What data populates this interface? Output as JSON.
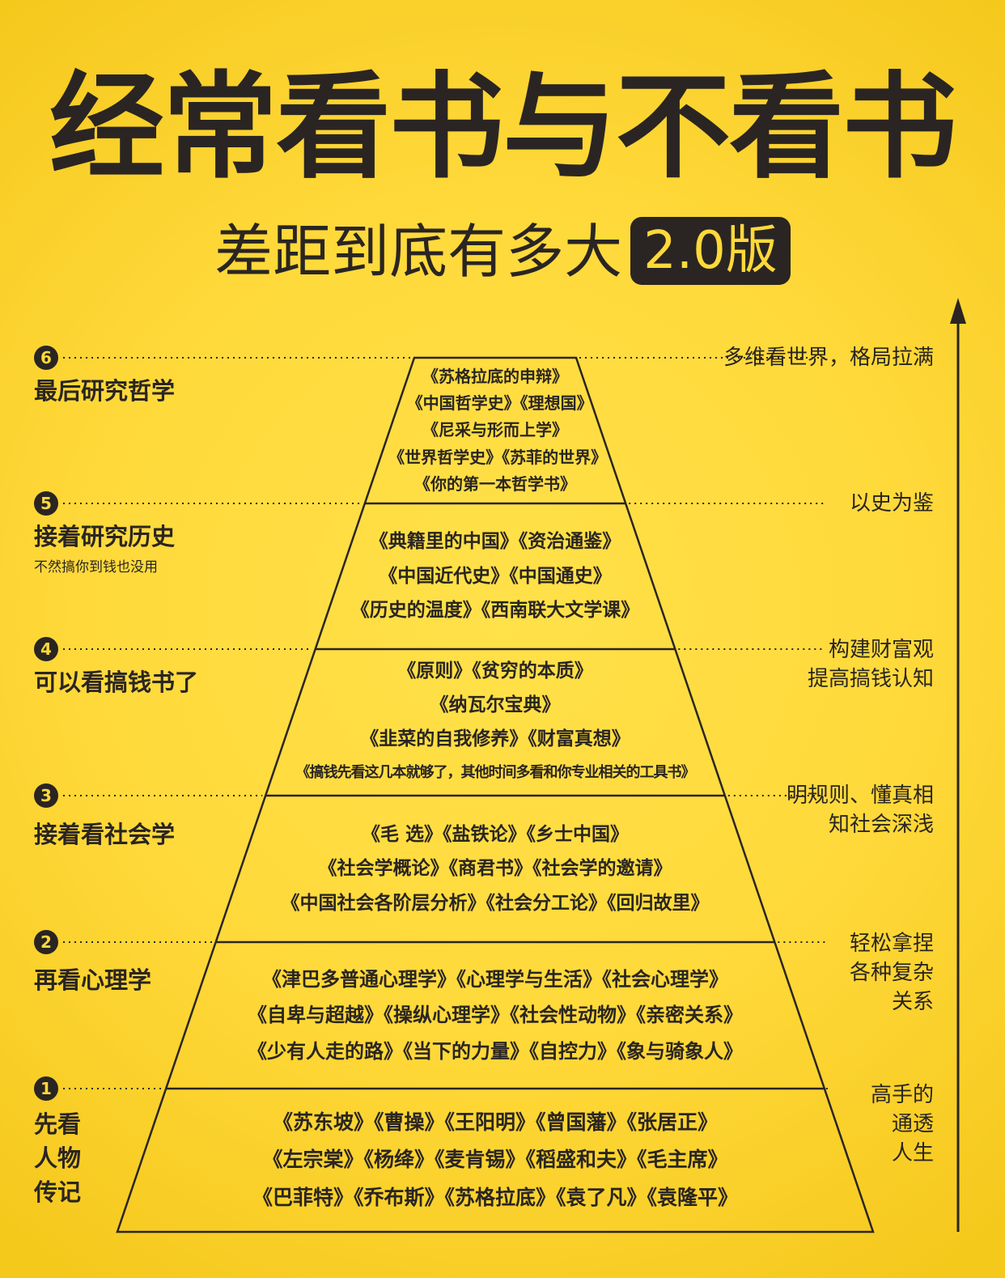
{
  "title": "经常看书与不看书",
  "subtitle": "差距到底有多大",
  "version_badge": "2.0版",
  "levels": [
    {
      "number": "6",
      "label": "最后研究哲学",
      "sublabel": "",
      "description": "多维看世界，格局拉满",
      "books": [
        "《苏格拉底的申辩》",
        "《中国哲学史》《理想国》",
        "《尼采与形而上学》",
        "《世界哲学史》《苏菲的世界》",
        "《你的第一本哲学书》"
      ]
    },
    {
      "number": "5",
      "label": "接着研究历史",
      "sublabel": "不然搞你到钱也没用",
      "description": "以史为鉴",
      "books": [
        "《典籍里的中国》《资治通鉴》",
        "《中国近代史》《中国通史》",
        "《历史的温度》《西南联大文学课》"
      ]
    },
    {
      "number": "4",
      "label": "可以看搞钱书了",
      "sublabel": "",
      "description": "构建财富观\n提高搞钱认知",
      "books": [
        "《原则》《贫穷的本质》",
        "《纳瓦尔宝典》",
        "《韭菜的自我修养》《财富真想》",
        "《搞钱先看这几本就够了，其他时间多看和你专业相关的工具书》"
      ]
    },
    {
      "number": "3",
      "label": "接着看社会学",
      "sublabel": "",
      "description": "明规则、懂真相\n知社会深浅",
      "books": [
        "《毛 选》《盐铁论》《乡士中国》",
        "《社会学概论》《商君书》《社会学的邀请》",
        "《中国社会各阶层分析》《社会分工论》《回归故里》"
      ]
    },
    {
      "number": "2",
      "label": "再看心理学",
      "sublabel": "",
      "description": "轻松拿捏\n各种复杂\n关系",
      "books": [
        "《津巴多普通心理学》《心理学与生活》《社会心理学》",
        "《自卑与超越》《操纵心理学》《社会性动物》《亲密关系》",
        "《少有人走的路》《当下的力量》《自控力》《象与骑象人》"
      ]
    },
    {
      "number": "1",
      "label": "先看\n人物\n传记",
      "sublabel": "",
      "description": "高手的\n通透\n人生",
      "books": [
        "《苏东坡》《曹操》《王阳明》《曾国藩》《张居正》",
        "《左宗棠》《杨绛》《麦肯锡》《稻盛和夫》《毛主席》",
        "《巴菲特》《乔布斯》《苏格拉底》《袁了凡》《袁隆平》"
      ]
    }
  ],
  "colors": {
    "background": "#ffd93a",
    "ink": "#2a2522"
  }
}
